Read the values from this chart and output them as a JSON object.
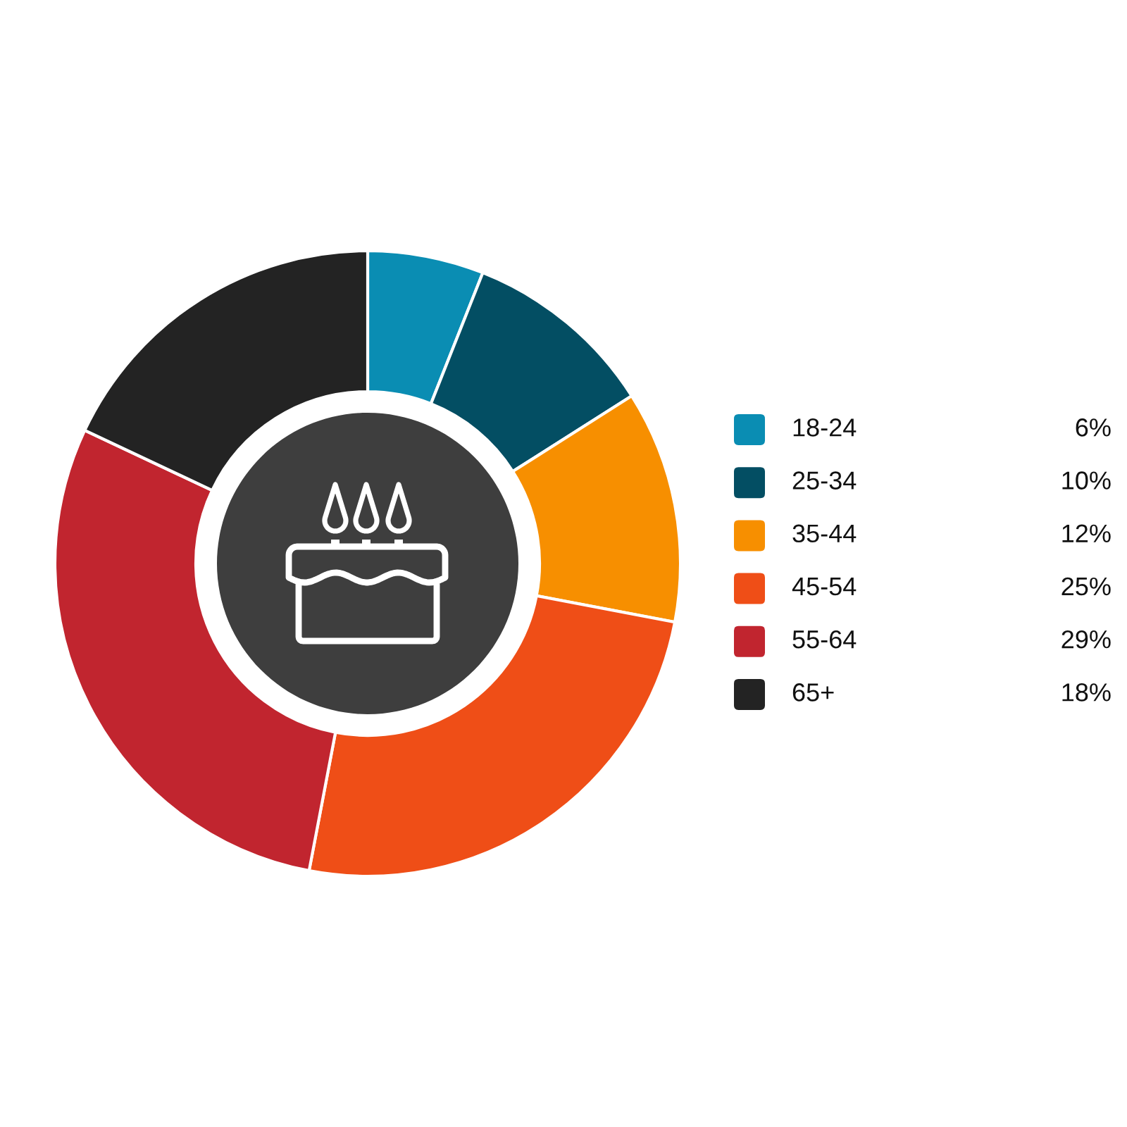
{
  "chart_data": {
    "type": "donut",
    "categories": [
      "18-24",
      "25-34",
      "35-44",
      "45-54",
      "55-64",
      "65+"
    ],
    "values": [
      6,
      10,
      12,
      25,
      29,
      18
    ],
    "colors": [
      "#0a8db3",
      "#034e63",
      "#f78f00",
      "#ef4e17",
      "#c1252f",
      "#232323"
    ],
    "value_labels": [
      "6%",
      "10%",
      "12%",
      "25%",
      "29%",
      "18%"
    ],
    "legend": "right"
  }
}
